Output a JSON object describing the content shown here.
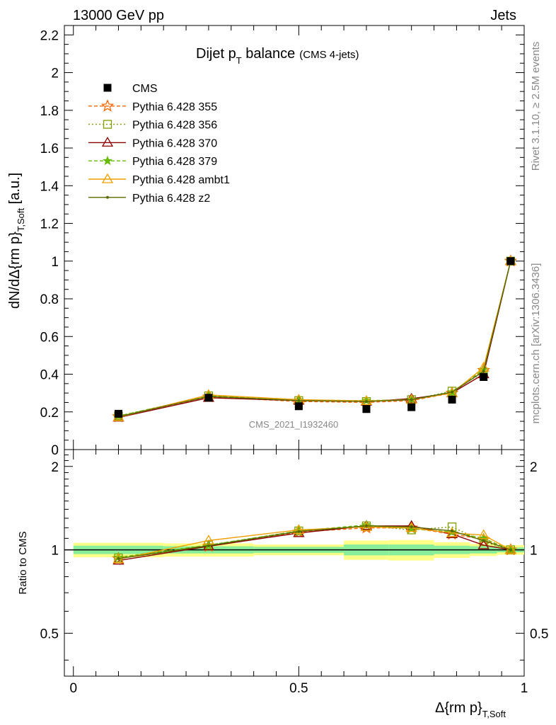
{
  "header": {
    "energy_label": "13000 GeV pp",
    "category_label": "Jets",
    "plot_title": "Dijet p",
    "plot_title_sub": "T",
    "plot_title_rest": " balance",
    "plot_title_small": "(CMS 4-jets)",
    "analysis_id": "CMS_2021_I1932460",
    "rivet_note": "Rivet 3.1.10, ≥ 2.5M events",
    "mcplots_note": "mcplots.cern.ch [arXiv:1306.3436]"
  },
  "axes": {
    "y_main_label": "dN/dΔ{rm p}",
    "y_main_label_sub": "T,Soft",
    "y_main_label_unit": " [a.u.]",
    "y_ratio_label": "Ratio to CMS",
    "x_label": "Δ{rm p}",
    "x_label_sub": "T,Soft"
  },
  "chart_data": [
    {
      "type": "line",
      "panel": "main",
      "xlim": [
        -0.02,
        1.0
      ],
      "ylim": [
        0,
        2.25
      ],
      "x_ticks": [
        "0",
        "0.5",
        "1"
      ],
      "y_ticks": [
        "0",
        "0.2",
        "0.4",
        "0.6",
        "0.8",
        "1",
        "1.2",
        "1.4",
        "1.6",
        "1.8",
        "2",
        "2.2"
      ],
      "x": [
        0.1,
        0.3,
        0.5,
        0.65,
        0.75,
        0.84,
        0.91,
        0.97
      ],
      "data": {
        "name": "CMS",
        "values": [
          0.19,
          0.275,
          0.23,
          0.215,
          0.225,
          0.265,
          0.385,
          1.0
        ]
      },
      "series": [
        {
          "name": "Pythia 6.428 355",
          "color": "#ff6600",
          "dash": "5,3",
          "marker": "star",
          "values": [
            0.175,
            0.28,
            0.255,
            0.25,
            0.26,
            0.3,
            0.42,
            1.0
          ]
        },
        {
          "name": "Pythia 6.428 356",
          "color": "#7f9f00",
          "dash": "2,3",
          "marker": "square-open",
          "values": [
            0.178,
            0.285,
            0.26,
            0.255,
            0.265,
            0.31,
            0.41,
            1.0
          ]
        },
        {
          "name": "Pythia 6.428 370",
          "color": "#8b0000",
          "dash": "",
          "marker": "triangle-open",
          "values": [
            0.17,
            0.275,
            0.26,
            0.255,
            0.27,
            0.3,
            0.4,
            1.0
          ]
        },
        {
          "name": "Pythia 6.428 379",
          "color": "#66bb00",
          "dash": "5,3",
          "marker": "star-small",
          "values": [
            0.178,
            0.285,
            0.262,
            0.26,
            0.265,
            0.305,
            0.425,
            1.0
          ]
        },
        {
          "name": "Pythia 6.428 ambt1",
          "color": "#f0a000",
          "dash": "",
          "marker": "triangle-open",
          "values": [
            0.172,
            0.29,
            0.265,
            0.258,
            0.265,
            0.3,
            0.435,
            1.0
          ]
        },
        {
          "name": "Pythia 6.428 z2",
          "color": "#556b00",
          "dash": "",
          "marker": "dot",
          "values": [
            0.175,
            0.282,
            0.26,
            0.255,
            0.265,
            0.305,
            0.415,
            1.0
          ]
        }
      ],
      "legend_placement": "top-left"
    },
    {
      "type": "line",
      "panel": "ratio",
      "xlim": [
        -0.02,
        1.0
      ],
      "ylim": [
        0.35,
        2.3
      ],
      "y_ticks": [
        "0.5",
        "1",
        "2"
      ],
      "x": [
        0.1,
        0.3,
        0.5,
        0.65,
        0.75,
        0.84,
        0.91,
        0.97
      ],
      "band_edges": [
        0.0,
        0.2,
        0.4,
        0.6,
        0.7,
        0.8,
        0.88,
        0.94,
        1.0
      ],
      "band_outer": [
        0.06,
        0.055,
        0.045,
        0.08,
        0.085,
        0.065,
        0.05,
        0.04
      ],
      "band_inner": [
        0.035,
        0.03,
        0.025,
        0.045,
        0.045,
        0.035,
        0.03,
        0.02
      ],
      "series": [
        {
          "name": "Pythia 6.428 355",
          "values": [
            0.93,
            1.03,
            1.16,
            1.2,
            1.2,
            1.14,
            1.09,
            1.0
          ]
        },
        {
          "name": "Pythia 6.428 356",
          "values": [
            0.935,
            1.04,
            1.17,
            1.22,
            1.18,
            1.21,
            1.07,
            1.0
          ]
        },
        {
          "name": "Pythia 6.428 370",
          "values": [
            0.915,
            1.03,
            1.15,
            1.22,
            1.22,
            1.14,
            1.04,
            1.0
          ]
        },
        {
          "name": "Pythia 6.428 379",
          "values": [
            0.94,
            1.04,
            1.17,
            1.23,
            1.19,
            1.16,
            1.1,
            1.0
          ]
        },
        {
          "name": "Pythia 6.428 ambt1",
          "values": [
            0.925,
            1.08,
            1.18,
            1.21,
            1.2,
            1.15,
            1.13,
            1.0
          ]
        },
        {
          "name": "Pythia 6.428 z2",
          "values": [
            0.93,
            1.035,
            1.165,
            1.22,
            1.21,
            1.17,
            1.08,
            1.0
          ]
        }
      ]
    }
  ]
}
